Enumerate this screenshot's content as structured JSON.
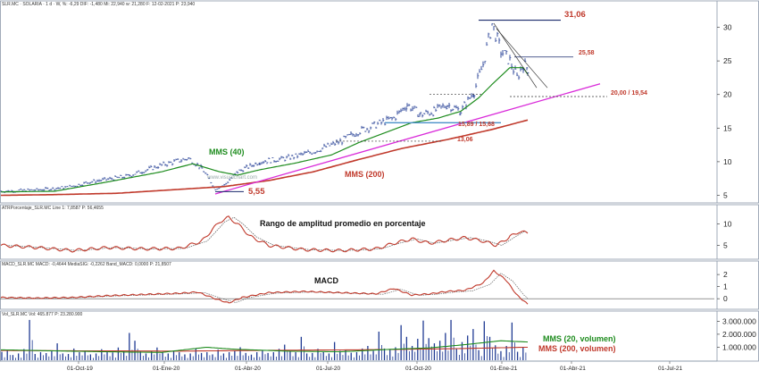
{
  "panels": {
    "price": {
      "header": "SLR.MC · SOLARIA · 1 d · W, %: -6,29  DIF: -1,480  Mi: 22,940  w: 21,280  F: 12-02-2021  P: 23,940",
      "y_ticks": [
        "5",
        "10",
        "15",
        "20",
        "25",
        "30"
      ],
      "watermark": "www.visualchart.com",
      "labels": {
        "sma40": "MMS (40)",
        "sma200": "MMS (200)",
        "high": "31,06",
        "level_25": "25,58",
        "level_20": "20,00 / 19,54",
        "level_1589": "15,89 / 15,68",
        "level_13": "13,06",
        "low": "5,55"
      }
    },
    "atr": {
      "header": "ATRPorcentaje_SLR.MC  Line 1: 7,8587  P: 56,4655",
      "title": "Rango de amplitud promedio en porcentaje",
      "y_ticks": [
        "5",
        "10"
      ]
    },
    "macd": {
      "header": "MACD_SLR.MC  MACD: -0,4644  MediaSIG: -0,2262  Band_MACD: 0,0000  P: 21,8507",
      "title": "MACD",
      "y_ticks": [
        "0",
        "1",
        "2"
      ]
    },
    "volume": {
      "header": "Vol_SLR.MC  Vol: 465.877  P: 23.280.900",
      "y_ticks": [
        "1.000.000",
        "2.000.000",
        "3.000.000"
      ],
      "labels": {
        "vol20": "MMS (20, volumen)",
        "vol200": "MMS (200, volumen)"
      }
    }
  },
  "x_ticks": [
    "01-Oct-19",
    "01-Ene-20",
    "01-Abr-20",
    "01-Jul-20",
    "01-Oct-20",
    "01-Ene-21",
    "01-Abr-21",
    "01-Jul-21"
  ],
  "colors": {
    "background": "#ffffff",
    "price_bars": "#1f3a93",
    "sma40": "#1e8c1e",
    "sma200": "#c0392b",
    "trendline": "#d92ad9",
    "support_line": "#4a90c8",
    "level_line": "#1a2a6c",
    "atr_line": "#c0392b",
    "atr_signal": "#555555",
    "volume_bars": "#1f3a93",
    "vol_ma20": "#1e8c1e",
    "vol_ma200": "#c0392b",
    "grid": "#dddddd"
  },
  "chart_data": [
    {
      "type": "line",
      "panel": "price",
      "x": [
        "01-Oct-19",
        "01-Ene-20",
        "01-Abr-20",
        "01-Jul-20",
        "01-Oct-20",
        "01-Ene-21"
      ],
      "ylim": [
        4,
        33
      ],
      "series": [
        {
          "name": "SLR.MC",
          "points": [
            [
              0,
              5.6
            ],
            [
              40,
              5.8
            ],
            [
              75,
              6.2
            ],
            [
              100,
              7.0
            ],
            [
              140,
              7.8
            ],
            [
              180,
              9.5
            ],
            [
              210,
              10.5
            ],
            [
              225,
              9.0
            ],
            [
              240,
              6.0
            ],
            [
              250,
              6.5
            ],
            [
              265,
              8.5
            ],
            [
              290,
              10.0
            ],
            [
              320,
              10.5
            ],
            [
              350,
              11.5
            ],
            [
              380,
              13.0
            ],
            [
              400,
              14.5
            ],
            [
              420,
              15.5
            ],
            [
              440,
              16.5
            ],
            [
              455,
              18.5
            ],
            [
              470,
              17.0
            ],
            [
              485,
              17.5
            ],
            [
              500,
              18.5
            ],
            [
              515,
              17.5
            ],
            [
              530,
              20.5
            ],
            [
              540,
              24.5
            ],
            [
              550,
              30.5
            ],
            [
              560,
              26.5
            ],
            [
              570,
              25.0
            ],
            [
              578,
              22.5
            ],
            [
              585,
              24.5
            ],
            [
              590,
              23.9
            ]
          ]
        },
        {
          "name": "MMS (40)",
          "points": [
            [
              0,
              5.5
            ],
            [
              60,
              5.6
            ],
            [
              120,
              7.0
            ],
            [
              180,
              8.5
            ],
            [
              215,
              9.7
            ],
            [
              245,
              8.5
            ],
            [
              265,
              8.0
            ],
            [
              290,
              8.8
            ],
            [
              330,
              9.8
            ],
            [
              370,
              11.0
            ],
            [
              400,
              12.8
            ],
            [
              430,
              14.3
            ],
            [
              460,
              15.8
            ],
            [
              490,
              16.5
            ],
            [
              515,
              17.5
            ],
            [
              535,
              19.5
            ],
            [
              550,
              21.5
            ],
            [
              570,
              24.0
            ],
            [
              585,
              24.0
            ],
            [
              590,
              23.0
            ]
          ]
        },
        {
          "name": "MMS (200)",
          "points": [
            [
              0,
              5.0
            ],
            [
              60,
              5.1
            ],
            [
              130,
              5.3
            ],
            [
              190,
              5.8
            ],
            [
              250,
              6.3
            ],
            [
              300,
              7.2
            ],
            [
              350,
              8.5
            ],
            [
              400,
              10.3
            ],
            [
              450,
              12.0
            ],
            [
              500,
              13.3
            ],
            [
              550,
              14.8
            ],
            [
              590,
              16.2
            ]
          ]
        }
      ]
    },
    {
      "type": "line",
      "panel": "atr",
      "title": "Rango de amplitud promedio en porcentaje",
      "ylim": [
        2,
        13
      ],
      "series": [
        {
          "name": "Line 1",
          "points": [
            [
              0,
              5.0
            ],
            [
              40,
              4.5
            ],
            [
              80,
              3.8
            ],
            [
              120,
              4.5
            ],
            [
              160,
              4.2
            ],
            [
              200,
              4.3
            ],
            [
              225,
              6.0
            ],
            [
              245,
              10.5
            ],
            [
              255,
              11.5
            ],
            [
              265,
              10.0
            ],
            [
              280,
              7.0
            ],
            [
              300,
              5.0
            ],
            [
              340,
              4.0
            ],
            [
              380,
              3.8
            ],
            [
              420,
              4.2
            ],
            [
              440,
              5.5
            ],
            [
              460,
              6.5
            ],
            [
              480,
              5.5
            ],
            [
              500,
              6.2
            ],
            [
              520,
              6.8
            ],
            [
              540,
              6.0
            ],
            [
              555,
              5.0
            ],
            [
              570,
              7.0
            ],
            [
              580,
              8.2
            ],
            [
              590,
              7.9
            ]
          ]
        }
      ]
    },
    {
      "type": "line",
      "panel": "macd",
      "title": "MACD",
      "ylim": [
        -0.8,
        2.6
      ],
      "series": [
        {
          "name": "MACD",
          "points": [
            [
              0,
              0.1
            ],
            [
              40,
              0.05
            ],
            [
              80,
              0.1
            ],
            [
              120,
              0.25
            ],
            [
              160,
              0.35
            ],
            [
              200,
              0.45
            ],
            [
              220,
              0.55
            ],
            [
              240,
              0.0
            ],
            [
              255,
              -0.35
            ],
            [
              270,
              0.1
            ],
            [
              300,
              0.5
            ],
            [
              340,
              0.6
            ],
            [
              380,
              0.5
            ],
            [
              420,
              0.4
            ],
            [
              440,
              0.85
            ],
            [
              460,
              0.3
            ],
            [
              480,
              0.4
            ],
            [
              500,
              0.6
            ],
            [
              520,
              0.7
            ],
            [
              540,
              1.3
            ],
            [
              552,
              2.3
            ],
            [
              565,
              1.6
            ],
            [
              578,
              0.3
            ],
            [
              590,
              -0.46
            ]
          ]
        }
      ]
    },
    {
      "type": "bar",
      "panel": "volume",
      "ylim": [
        0,
        3300000
      ],
      "series": [
        {
          "name": "Vol",
          "values": [
            650000,
            720000,
            400000,
            520000,
            860000,
            3100000,
            480000,
            620000,
            550000,
            700000,
            1300000,
            520000,
            480000,
            900000,
            620000,
            750000,
            450000,
            520000,
            850000,
            700000,
            600000,
            980000,
            720000,
            2100000,
            1500000,
            680000,
            520000,
            720000,
            980000,
            620000,
            520000,
            700000,
            620000,
            450000,
            520000,
            880000,
            560000,
            620000,
            450000,
            820000,
            520000,
            620000,
            720000,
            1000000,
            560000,
            430000,
            620000,
            750000,
            560000,
            620000,
            880000,
            1200000,
            660000,
            620000,
            1800000,
            520000,
            560000,
            880000,
            620000,
            520000,
            1400000,
            720000,
            780000,
            580000,
            620000,
            900000,
            1100000,
            720000,
            2200000,
            900000,
            820000,
            1000000,
            2700000,
            1800000,
            1100000,
            1650000,
            3050000,
            1700000,
            1300000,
            1500000,
            2100000,
            3100000,
            880000,
            1400000,
            1900000,
            2400000,
            780000,
            3000000,
            1800000,
            1150000,
            700000,
            1100000,
            2900000,
            650000,
            1000000
          ]
        },
        {
          "name": "MMS (20, volumen)",
          "points": [
            [
              0,
              800000
            ],
            [
              60,
              720000
            ],
            [
              120,
              650000
            ],
            [
              180,
              600000
            ],
            [
              230,
              1000000
            ],
            [
              260,
              850000
            ],
            [
              320,
              700000
            ],
            [
              380,
              650000
            ],
            [
              430,
              820000
            ],
            [
              480,
              950000
            ],
            [
              520,
              1200000
            ],
            [
              560,
              1500000
            ],
            [
              590,
              1400000
            ]
          ]
        },
        {
          "name": "MMS (200, volumen)",
          "points": [
            [
              0,
              750000
            ],
            [
              100,
              720000
            ],
            [
              200,
              700000
            ],
            [
              300,
              760000
            ],
            [
              400,
              800000
            ],
            [
              500,
              880000
            ],
            [
              590,
              1000000
            ]
          ]
        }
      ]
    }
  ]
}
